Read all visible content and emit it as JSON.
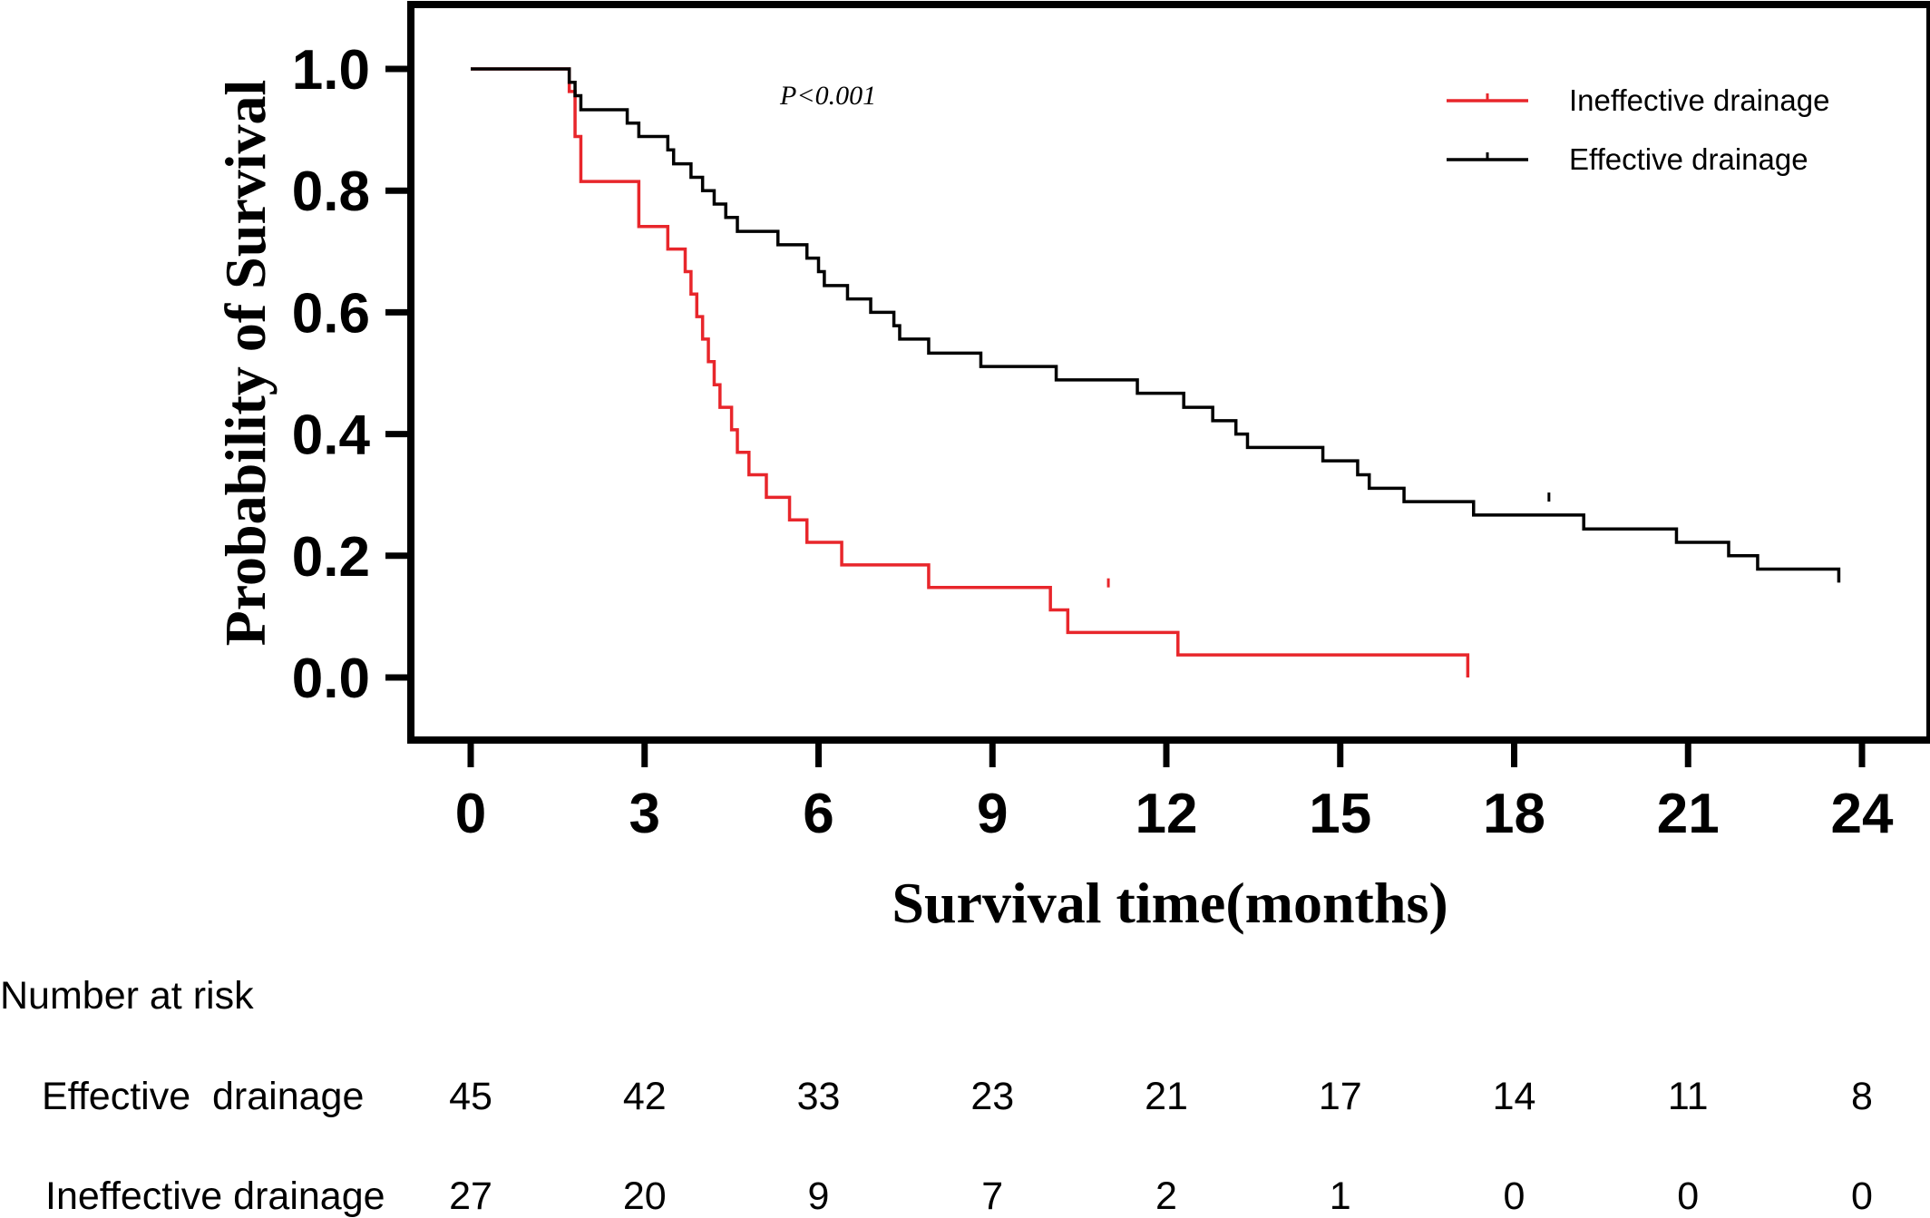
{
  "chart_data": {
    "type": "line",
    "step": true,
    "xlabel": "Survival time(months)",
    "ylabel": "Probability of Survival",
    "xlim": [
      0,
      25
    ],
    "ylim": [
      -0.1,
      1.1
    ],
    "xticks": [
      0,
      3,
      6,
      9,
      12,
      15,
      18,
      21,
      24
    ],
    "xtick_labels": [
      "0",
      "3",
      "6",
      "9",
      "12",
      "15",
      "18",
      "21",
      "24"
    ],
    "yticks": [
      0.0,
      0.2,
      0.4,
      0.6,
      0.8,
      1.0
    ],
    "ytick_labels": [
      "0.0",
      "0.2",
      "0.4",
      "0.6",
      "0.8",
      "1.0"
    ],
    "grid": false,
    "legend_position": "top-right",
    "annotation": "P<0.001",
    "series": [
      {
        "name": "Ineffective drainage",
        "color": "#e8262b",
        "x": [
          0,
          1.7,
          1.8,
          1.9,
          2.9,
          3.4,
          3.7,
          3.8,
          3.9,
          4.0,
          4.1,
          4.2,
          4.3,
          4.5,
          4.6,
          4.8,
          5.1,
          5.5,
          5.8,
          6.4,
          7.9,
          9.7,
          10.0,
          10.3,
          11.2,
          12.2,
          17.2,
          17.2
        ],
        "y": [
          1.0,
          0.963,
          0.889,
          0.815,
          0.741,
          0.704,
          0.667,
          0.63,
          0.593,
          0.556,
          0.519,
          0.481,
          0.444,
          0.407,
          0.37,
          0.333,
          0.296,
          0.259,
          0.222,
          0.185,
          0.148,
          0.148,
          0.111,
          0.074,
          0.074,
          0.037,
          0.037,
          0.0
        ],
        "censored": [
          [
            11.0,
            0.148
          ]
        ]
      },
      {
        "name": "Effective drainage",
        "color": "#000000",
        "x": [
          0,
          1.7,
          1.8,
          1.9,
          2.7,
          2.9,
          3.4,
          3.5,
          3.8,
          4.0,
          4.2,
          4.4,
          4.6,
          5.3,
          5.8,
          6.0,
          6.1,
          6.5,
          6.9,
          7.3,
          7.4,
          7.9,
          8.8,
          10.1,
          11.5,
          12.3,
          12.8,
          13.2,
          13.4,
          14.7,
          15.3,
          15.5,
          16.1,
          17.3,
          19.2,
          20.8,
          21.7,
          22.2,
          23.6
        ],
        "y": [
          1.0,
          0.978,
          0.956,
          0.933,
          0.911,
          0.889,
          0.867,
          0.844,
          0.822,
          0.8,
          0.778,
          0.756,
          0.733,
          0.711,
          0.689,
          0.667,
          0.644,
          0.622,
          0.6,
          0.578,
          0.556,
          0.533,
          0.511,
          0.489,
          0.467,
          0.444,
          0.422,
          0.4,
          0.378,
          0.356,
          0.333,
          0.311,
          0.289,
          0.267,
          0.244,
          0.222,
          0.2,
          0.178,
          0.156
        ],
        "censored": [
          [
            18.6,
            0.289
          ]
        ]
      }
    ]
  },
  "risk_table": {
    "title": "Number at risk",
    "rows": [
      {
        "label": "Effective  drainage",
        "values": [
          "45",
          "42",
          "33",
          "23",
          "21",
          "17",
          "14",
          "11",
          "8"
        ]
      },
      {
        "label": "Ineffective drainage",
        "values": [
          "27",
          "20",
          "9",
          "7",
          "2",
          "1",
          "0",
          "0",
          "0"
        ]
      }
    ]
  }
}
